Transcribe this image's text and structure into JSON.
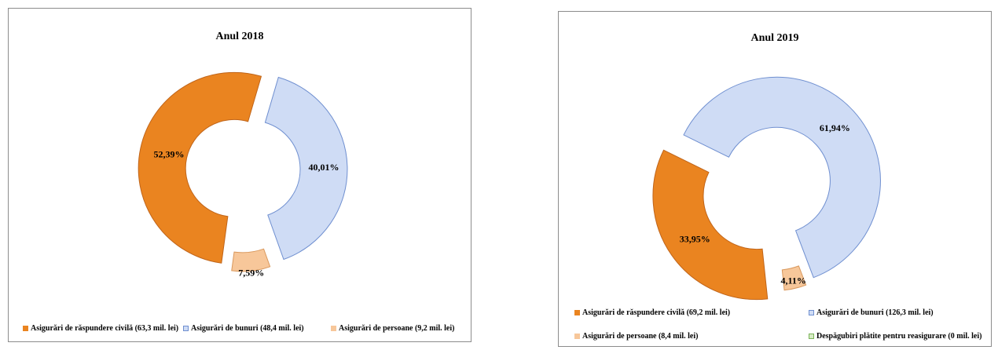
{
  "colors": {
    "raspundere": "#ea8420",
    "bunuri": "#cfdcf5",
    "persoane": "#f7c79a",
    "despagubiri": "#d6ecc4",
    "bunuri_border": "#6f8fd0",
    "despagubiri_border": "#7cb35a"
  },
  "chart_data": [
    {
      "type": "pie",
      "title": "Anul 2018",
      "series": [
        {
          "name": "Asigurări de răspundere civilă (63,3 mil. lei)",
          "value": 52.39,
          "label": "52,39%"
        },
        {
          "name": "Asigurări de bunuri (48,4 mil. lei)",
          "value": 40.01,
          "label": "40,01%"
        },
        {
          "name": "Asigurări de persoane (9,2 mil. lei)",
          "value": 7.59,
          "label": "7,59%"
        }
      ],
      "legend_position": "bottom"
    },
    {
      "type": "pie",
      "title": "Anul 2019",
      "series": [
        {
          "name": "Asigurări de răspundere civilă (69,2 mil. lei)",
          "value": 33.95,
          "label": "33,95%"
        },
        {
          "name": "Asigurări de bunuri (126,3 mil. lei)",
          "value": 61.94,
          "label": "61,94%"
        },
        {
          "name": "Asigurări de persoane (8,4 mil. lei)",
          "value": 4.11,
          "label": "4,11%"
        },
        {
          "name": "Despăgubiri plătite pentru reasigurare (0 mil. lei)",
          "value": 0,
          "label": ""
        }
      ],
      "legend_position": "bottom"
    }
  ]
}
